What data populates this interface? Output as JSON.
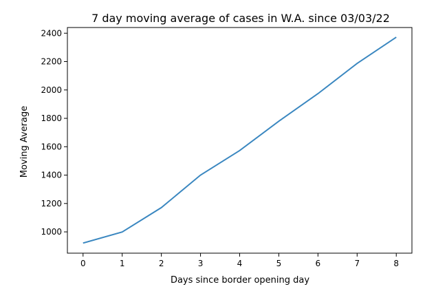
{
  "chart_data": {
    "type": "line",
    "title": "7 day moving average of cases in W.A. since 03/03/22",
    "xlabel": "Days since border opening day",
    "ylabel": "Moving Average",
    "x": [
      0,
      1,
      2,
      3,
      4,
      5,
      6,
      7,
      8
    ],
    "series": [
      {
        "values": [
          921,
          999,
          1171,
          1400,
          1573,
          1780,
          1974,
          2187,
          2372
        ],
        "color": "#3a87c0"
      }
    ],
    "xlim": [
      -0.4,
      8.4
    ],
    "ylim": [
      850,
      2440
    ],
    "xticks": [
      0,
      1,
      2,
      3,
      4,
      5,
      6,
      7,
      8
    ],
    "yticks": [
      1000,
      1200,
      1400,
      1600,
      1800,
      2000,
      2200,
      2400
    ],
    "grid": false,
    "legend": "none"
  }
}
